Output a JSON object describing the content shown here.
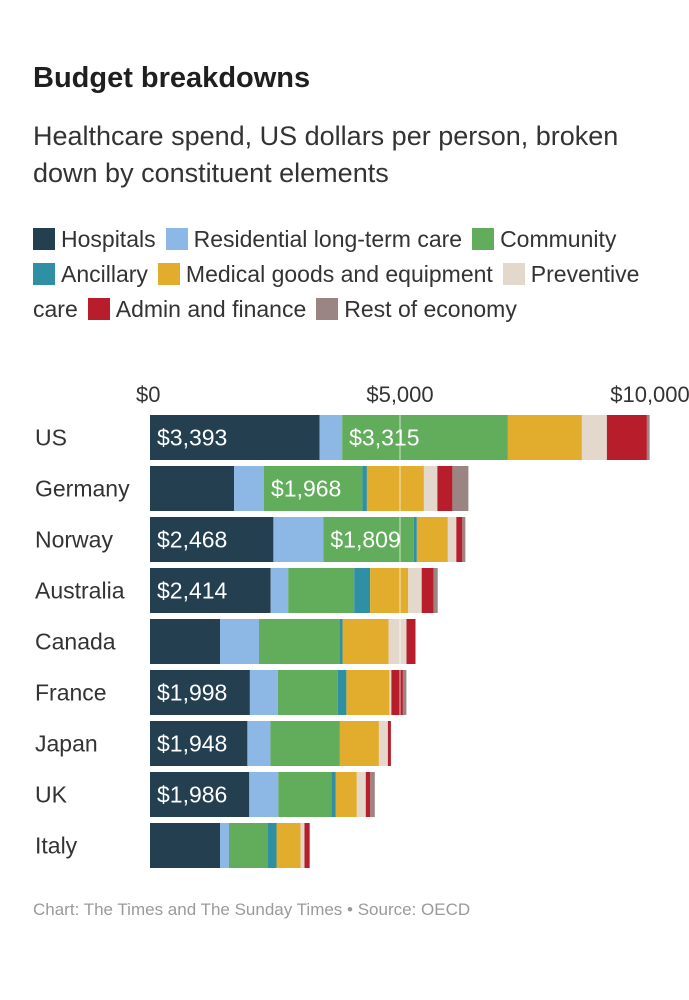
{
  "title": "Budget breakdowns",
  "subtitle": "Healthcare spend, US dollars per person, broken down by constituent elements",
  "footer": "Chart: The Times and The Sunday Times • Source: OECD",
  "legend": [
    {
      "label": "Hospitals",
      "color": "#243f50"
    },
    {
      "label": "Residential long-term care",
      "color": "#8db8e6"
    },
    {
      "label": "Community",
      "color": "#62ad5c"
    },
    {
      "label": "Ancillary",
      "color": "#2f8fa3"
    },
    {
      "label": "Medical goods and equipment",
      "color": "#e2ac2c"
    },
    {
      "label": "Preventive care",
      "color": "#e3d8cb"
    },
    {
      "label": "Admin and finance",
      "color": "#b71d2b"
    },
    {
      "label": "Rest of economy",
      "color": "#9a8582"
    }
  ],
  "chart_data": {
    "type": "bar",
    "orientation": "horizontal",
    "stacked": true,
    "x_ticks": [
      {
        "value": 0,
        "label": "$0"
      },
      {
        "value": 5000,
        "label": "$5,000"
      },
      {
        "value": 10000,
        "label": "$10,000"
      }
    ],
    "xlim": [
      0,
      10000
    ],
    "categories": [
      "US",
      "Germany",
      "Norway",
      "Australia",
      "Canada",
      "France",
      "Japan",
      "UK",
      "Italy"
    ],
    "series": [
      {
        "name": "Hospitals",
        "color": "#243f50",
        "values": [
          3393,
          1680,
          2468,
          2414,
          1400,
          1998,
          1948,
          1986,
          1400
        ]
      },
      {
        "name": "Residential long-term care",
        "color": "#8db8e6",
        "values": [
          450,
          600,
          1000,
          350,
          780,
          560,
          460,
          580,
          180
        ]
      },
      {
        "name": "Community",
        "color": "#62ad5c",
        "values": [
          3315,
          1968,
          1809,
          1320,
          1620,
          1200,
          1390,
          1060,
          780
        ]
      },
      {
        "name": "Ancillary",
        "color": "#2f8fa3",
        "values": [
          0,
          90,
          60,
          320,
          50,
          170,
          0,
          90,
          170
        ]
      },
      {
        "name": "Medical goods and equipment",
        "color": "#e2ac2c",
        "values": [
          1480,
          1140,
          620,
          760,
          920,
          860,
          780,
          420,
          480
        ]
      },
      {
        "name": "Preventive care",
        "color": "#e3d8cb",
        "values": [
          500,
          270,
          170,
          270,
          360,
          40,
          180,
          180,
          80
        ]
      },
      {
        "name": "Admin and finance",
        "color": "#b71d2b",
        "values": [
          800,
          300,
          120,
          240,
          180,
          230,
          60,
          90,
          90
        ]
      },
      {
        "name": "Rest of economy",
        "color": "#9a8582",
        "values": [
          60,
          320,
          60,
          80,
          0,
          70,
          0,
          90,
          20
        ]
      }
    ],
    "data_labels": [
      {
        "category": "US",
        "series": "Hospitals",
        "text": "$3,393"
      },
      {
        "category": "US",
        "series": "Community",
        "text": "$3,315"
      },
      {
        "category": "Germany",
        "series": "Community",
        "text": "$1,968"
      },
      {
        "category": "Norway",
        "series": "Hospitals",
        "text": "$2,468"
      },
      {
        "category": "Norway",
        "series": "Community",
        "text": "$1,809"
      },
      {
        "category": "Australia",
        "series": "Hospitals",
        "text": "$2,414"
      },
      {
        "category": "France",
        "series": "Hospitals",
        "text": "$1,998"
      },
      {
        "category": "Japan",
        "series": "Hospitals",
        "text": "$1,948"
      },
      {
        "category": "UK",
        "series": "Hospitals",
        "text": "$1,986"
      }
    ]
  }
}
